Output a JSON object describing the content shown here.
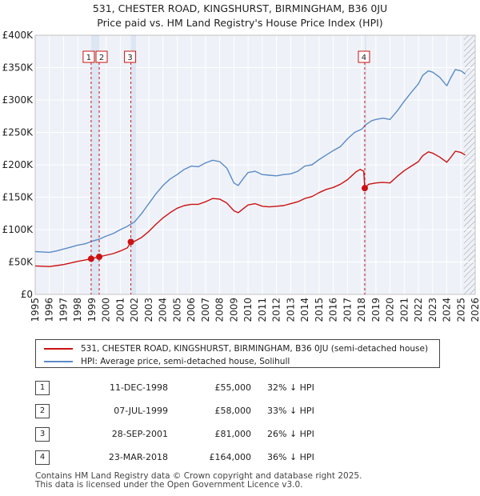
{
  "chart_data": {
    "type": "line",
    "title": "531, CHESTER ROAD, KINGSHURST, BIRMINGHAM, B36 0JU",
    "subtitle": "Price paid vs. HM Land Registry's House Price Index (HPI)",
    "xlabel": "",
    "ylabel": "",
    "xlim": [
      1995,
      2026
    ],
    "ylim": [
      0,
      400000
    ],
    "x_ticks": [
      "1995",
      "1996",
      "1997",
      "1998",
      "1999",
      "2000",
      "2001",
      "2002",
      "2003",
      "2004",
      "2005",
      "2006",
      "2007",
      "2008",
      "2009",
      "2010",
      "2011",
      "2012",
      "2013",
      "2014",
      "2015",
      "2016",
      "2017",
      "2018",
      "2019",
      "2020",
      "2021",
      "2022",
      "2023",
      "2024",
      "2025",
      "2026"
    ],
    "y_ticks": [
      {
        "value": 0,
        "label": "£0"
      },
      {
        "value": 50000,
        "label": "£50K"
      },
      {
        "value": 100000,
        "label": "£100K"
      },
      {
        "value": 150000,
        "label": "£150K"
      },
      {
        "value": 200000,
        "label": "£200K"
      },
      {
        "value": 250000,
        "label": "£250K"
      },
      {
        "value": 300000,
        "label": "£300K"
      },
      {
        "value": 350000,
        "label": "£350K"
      },
      {
        "value": 400000,
        "label": "£400K"
      }
    ],
    "shaded_ranges": [
      [
        1998.94,
        1999.51
      ],
      [
        2001.74,
        2002.1
      ],
      [
        2018.22,
        2018.3
      ]
    ],
    "hatched_after": 2025.2,
    "series": [
      {
        "name": "HPI: Average price, semi-detached house, Solihull",
        "color": "#5b8ac6",
        "x": [
          1995,
          1995.5,
          1996,
          1996.5,
          1997,
          1997.5,
          1998,
          1998.5,
          1999,
          1999.5,
          2000,
          2000.5,
          2001,
          2001.5,
          2002,
          2002.5,
          2003,
          2003.5,
          2004,
          2004.5,
          2005,
          2005.5,
          2006,
          2006.5,
          2007,
          2007.5,
          2008,
          2008.5,
          2009,
          2009.3,
          2009.7,
          2010,
          2010.5,
          2011,
          2011.5,
          2012,
          2012.5,
          2013,
          2013.5,
          2014,
          2014.5,
          2015,
          2015.5,
          2016,
          2016.5,
          2017,
          2017.5,
          2018,
          2018.3,
          2018.7,
          2019,
          2019.5,
          2020,
          2020.5,
          2021,
          2021.5,
          2022,
          2022.3,
          2022.7,
          2023,
          2023.5,
          2024,
          2024.3,
          2024.6,
          2025,
          2025.3
        ],
        "values": [
          66000,
          65500,
          65000,
          67000,
          70000,
          73000,
          76000,
          78000,
          82000,
          85000,
          90000,
          94000,
          100000,
          105000,
          112000,
          125000,
          140000,
          155000,
          168000,
          178000,
          185000,
          193000,
          198000,
          197000,
          203000,
          207000,
          205000,
          195000,
          172000,
          168000,
          180000,
          188000,
          190000,
          185000,
          184000,
          183000,
          185000,
          186000,
          190000,
          198000,
          200000,
          208000,
          215000,
          222000,
          228000,
          240000,
          250000,
          255000,
          262000,
          268000,
          270000,
          272000,
          270000,
          283000,
          298000,
          312000,
          325000,
          338000,
          345000,
          343000,
          335000,
          322000,
          335000,
          347000,
          345000,
          340000
        ]
      },
      {
        "name": "531, CHESTER ROAD, KINGSHURST, BIRMINGHAM, B36 0JU (semi-detached house)",
        "color": "#cc1111",
        "x": [
          1995,
          1995.5,
          1996,
          1996.5,
          1997,
          1997.5,
          1998,
          1998.5,
          1998.94,
          1999.2,
          1999.51,
          2000,
          2000.5,
          2001,
          2001.5,
          2001.74,
          2002,
          2002.5,
          2003,
          2003.5,
          2004,
          2004.5,
          2005,
          2005.5,
          2006,
          2006.5,
          2007,
          2007.5,
          2008,
          2008.5,
          2009,
          2009.3,
          2009.7,
          2010,
          2010.5,
          2011,
          2011.5,
          2012,
          2012.5,
          2013,
          2013.5,
          2014,
          2014.5,
          2015,
          2015.5,
          2016,
          2016.5,
          2017,
          2017.3,
          2017.6,
          2017.9,
          2018.15,
          2018.22,
          2018.5,
          2019,
          2019.5,
          2020,
          2020.5,
          2021,
          2021.5,
          2022,
          2022.3,
          2022.7,
          2023,
          2023.5,
          2024,
          2024.3,
          2024.6,
          2025,
          2025.3
        ],
        "values": [
          44000,
          43500,
          43000,
          44500,
          46000,
          48500,
          51000,
          53000,
          55000,
          56500,
          58000,
          60500,
          63000,
          67000,
          72000,
          81000,
          82000,
          88000,
          97000,
          108000,
          118000,
          126000,
          133000,
          137000,
          139000,
          139000,
          143000,
          148000,
          147000,
          141000,
          129000,
          126000,
          133000,
          138000,
          140000,
          136000,
          135000,
          136000,
          137000,
          140000,
          143000,
          148000,
          151000,
          157000,
          162000,
          165000,
          170000,
          177000,
          183000,
          189000,
          193000,
          190000,
          164000,
          170000,
          172000,
          173000,
          172000,
          182000,
          191000,
          198000,
          205000,
          214000,
          220000,
          218000,
          212000,
          204000,
          212000,
          221000,
          219000,
          215000
        ]
      }
    ],
    "sales": [
      {
        "id": "1",
        "x": 1998.94,
        "price": 55000,
        "date": "11-DEC-1998",
        "price_label": "£55,000",
        "hpi_label": "32% ↓ HPI"
      },
      {
        "id": "2",
        "x": 1999.51,
        "price": 58000,
        "date": "07-JUL-1999",
        "price_label": "£58,000",
        "hpi_label": "33% ↓ HPI"
      },
      {
        "id": "3",
        "x": 2001.74,
        "price": 81000,
        "date": "28-SEP-2001",
        "price_label": "£81,000",
        "hpi_label": "26% ↓ HPI"
      },
      {
        "id": "4",
        "x": 2018.22,
        "price": 164000,
        "date": "23-MAR-2018",
        "price_label": "£164,000",
        "hpi_label": "36% ↓ HPI"
      }
    ]
  },
  "legend": {
    "property_label": "531, CHESTER ROAD, KINGSHURST, BIRMINGHAM, B36 0JU (semi-detached house)",
    "hpi_label": "HPI: Average price, semi-detached house, Solihull",
    "property_color": "#cc1111",
    "hpi_color": "#5b8ac6"
  },
  "footer": {
    "line1": "Contains HM Land Registry data © Crown copyright and database right 2025.",
    "line2": "This data is licensed under the Open Government Licence v3.0."
  }
}
